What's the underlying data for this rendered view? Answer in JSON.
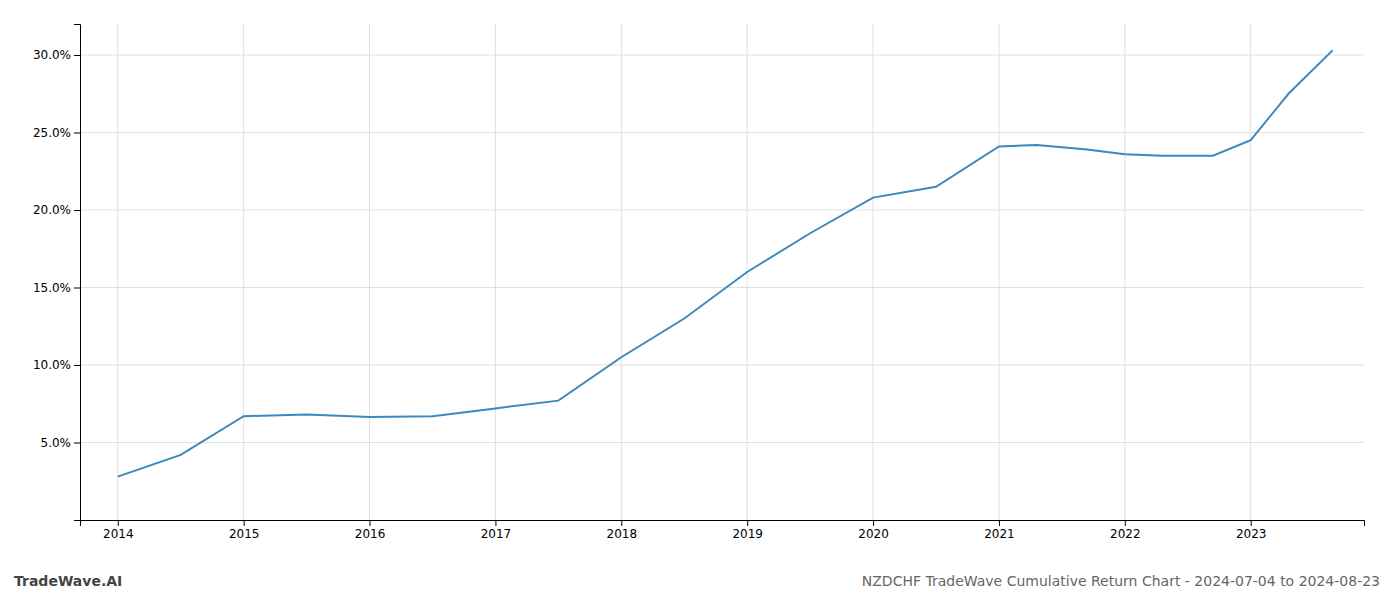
{
  "chart_data": {
    "type": "line",
    "title": "NZDCHF TradeWave Cumulative Return Chart - 2024-07-04 to 2024-08-23",
    "annotations": [
      "TradeWave.AI"
    ],
    "x": [
      2014,
      2014.5,
      2015,
      2015.5,
      2016,
      2016.5,
      2017,
      2017.5,
      2018,
      2018.5,
      2019,
      2019.5,
      2020,
      2020.5,
      2021,
      2021.3,
      2021.7,
      2022,
      2022.3,
      2022.7,
      2023,
      2023.3,
      2023.65
    ],
    "values": [
      2.8,
      4.2,
      6.7,
      6.8,
      6.65,
      6.7,
      7.2,
      7.7,
      10.5,
      13.0,
      16.0,
      18.5,
      20.8,
      21.5,
      24.1,
      24.2,
      23.9,
      23.6,
      23.5,
      23.5,
      24.5,
      27.5,
      30.3
    ],
    "color": "#3a8abf",
    "xlim": [
      2013.7,
      2023.9
    ],
    "ylim": [
      0,
      32
    ],
    "xticks": [
      2014,
      2015,
      2016,
      2017,
      2018,
      2019,
      2020,
      2021,
      2022,
      2023
    ],
    "yticks": [
      {
        "value": 5.0,
        "label": "5.0%"
      },
      {
        "value": 10.0,
        "label": "10.0%"
      },
      {
        "value": 15.0,
        "label": "15.0%"
      },
      {
        "value": 20.0,
        "label": "20.0%"
      },
      {
        "value": 25.0,
        "label": "25.0%"
      },
      {
        "value": 30.0,
        "label": "30.0%"
      }
    ],
    "grid": true
  }
}
